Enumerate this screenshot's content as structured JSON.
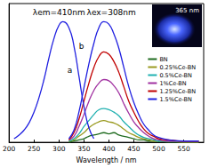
{
  "chart_data": {
    "type": "line",
    "x_label": "Wavelength / nm",
    "xlim": [
      200,
      590
    ],
    "xticks": [
      200,
      250,
      300,
      350,
      400,
      450,
      500,
      550
    ],
    "ylim": [
      0,
      1.15
    ],
    "tick_labels": "x",
    "grid": false,
    "legend": "upper right",
    "annotations": [
      {
        "text": "λem=410nm",
        "x": 300,
        "y": 1.08
      },
      {
        "text": "λex=308nm",
        "x": 405,
        "y": 1.08
      },
      {
        "text": "a",
        "x": 322,
        "y": 0.6
      },
      {
        "text": "b",
        "x": 345,
        "y": 0.8
      }
    ],
    "inset_label": "365 nm",
    "series": [
      {
        "name": "BN",
        "color": "#1f6b1f",
        "x": [
          320,
          330,
          340,
          350,
          360,
          370,
          380,
          390,
          400,
          410,
          420,
          430,
          440,
          450,
          460,
          470,
          480,
          490,
          500,
          520,
          550,
          580
        ],
        "values": [
          0,
          0.01,
          0.02,
          0.03,
          0.05,
          0.06,
          0.07,
          0.08,
          0.07,
          0.08,
          0.06,
          0.05,
          0.04,
          0.03,
          0.02,
          0.02,
          0.01,
          0.01,
          0.01,
          0,
          0,
          0
        ]
      },
      {
        "name": "0.25%Ce-BN",
        "color": "#9a9a20",
        "x": [
          320,
          330,
          340,
          350,
          360,
          370,
          380,
          390,
          400,
          410,
          420,
          430,
          440,
          450,
          460,
          470,
          480,
          490,
          500,
          520,
          550,
          580
        ],
        "values": [
          0.01,
          0.02,
          0.05,
          0.08,
          0.12,
          0.15,
          0.17,
          0.18,
          0.17,
          0.16,
          0.14,
          0.11,
          0.08,
          0.06,
          0.04,
          0.03,
          0.02,
          0.01,
          0.01,
          0.01,
          0,
          0
        ]
      },
      {
        "name": "0.5%Ce-BN",
        "color": "#20b0b0",
        "x": [
          320,
          330,
          340,
          350,
          360,
          370,
          380,
          390,
          400,
          410,
          420,
          430,
          440,
          450,
          460,
          470,
          480,
          490,
          500,
          520,
          550,
          580
        ],
        "values": [
          0.01,
          0.03,
          0.07,
          0.13,
          0.18,
          0.23,
          0.27,
          0.28,
          0.27,
          0.25,
          0.22,
          0.17,
          0.13,
          0.09,
          0.06,
          0.04,
          0.03,
          0.02,
          0.01,
          0.01,
          0.01,
          0.01
        ]
      },
      {
        "name": "1%Ce-BN",
        "color": "#a030a0",
        "x": [
          320,
          330,
          340,
          350,
          360,
          370,
          380,
          390,
          400,
          410,
          420,
          430,
          440,
          450,
          460,
          470,
          480,
          490,
          500,
          520,
          550,
          580
        ],
        "values": [
          0.02,
          0.05,
          0.13,
          0.23,
          0.34,
          0.43,
          0.49,
          0.52,
          0.51,
          0.47,
          0.41,
          0.32,
          0.24,
          0.17,
          0.12,
          0.08,
          0.05,
          0.03,
          0.02,
          0.01,
          0.01,
          0.01
        ]
      },
      {
        "name": "1.25%Ce-BN",
        "color": "#c00000",
        "x": [
          320,
          330,
          340,
          350,
          360,
          370,
          380,
          390,
          400,
          410,
          420,
          430,
          440,
          450,
          460,
          470,
          480,
          490,
          500,
          520,
          550,
          580
        ],
        "values": [
          0.02,
          0.08,
          0.19,
          0.34,
          0.49,
          0.62,
          0.71,
          0.75,
          0.73,
          0.67,
          0.58,
          0.46,
          0.34,
          0.25,
          0.17,
          0.11,
          0.07,
          0.05,
          0.03,
          0.02,
          0.01,
          0.01
        ]
      },
      {
        "name": "1.5%Ce-BN",
        "color": "#2020e0",
        "x": [
          320,
          330,
          340,
          350,
          360,
          370,
          380,
          390,
          400,
          410,
          420,
          430,
          440,
          450,
          460,
          470,
          480,
          490,
          500,
          520,
          550,
          580
        ],
        "values": [
          0.03,
          0.1,
          0.25,
          0.45,
          0.65,
          0.82,
          0.95,
          1.0,
          0.98,
          0.9,
          0.78,
          0.62,
          0.46,
          0.33,
          0.23,
          0.15,
          0.1,
          0.06,
          0.04,
          0.02,
          0.01,
          0.01
        ]
      },
      {
        "name": "1.5%Ce-BN",
        "color": "#2020e0",
        "x": [
          210,
          220,
          230,
          240,
          250,
          260,
          270,
          280,
          290,
          300,
          308,
          320,
          330,
          340,
          350,
          360,
          370
        ],
        "values": [
          0.03,
          0.06,
          0.1,
          0.16,
          0.25,
          0.37,
          0.52,
          0.7,
          0.86,
          0.97,
          1.0,
          0.95,
          0.8,
          0.55,
          0.3,
          0.12,
          0.03
        ]
      }
    ]
  }
}
